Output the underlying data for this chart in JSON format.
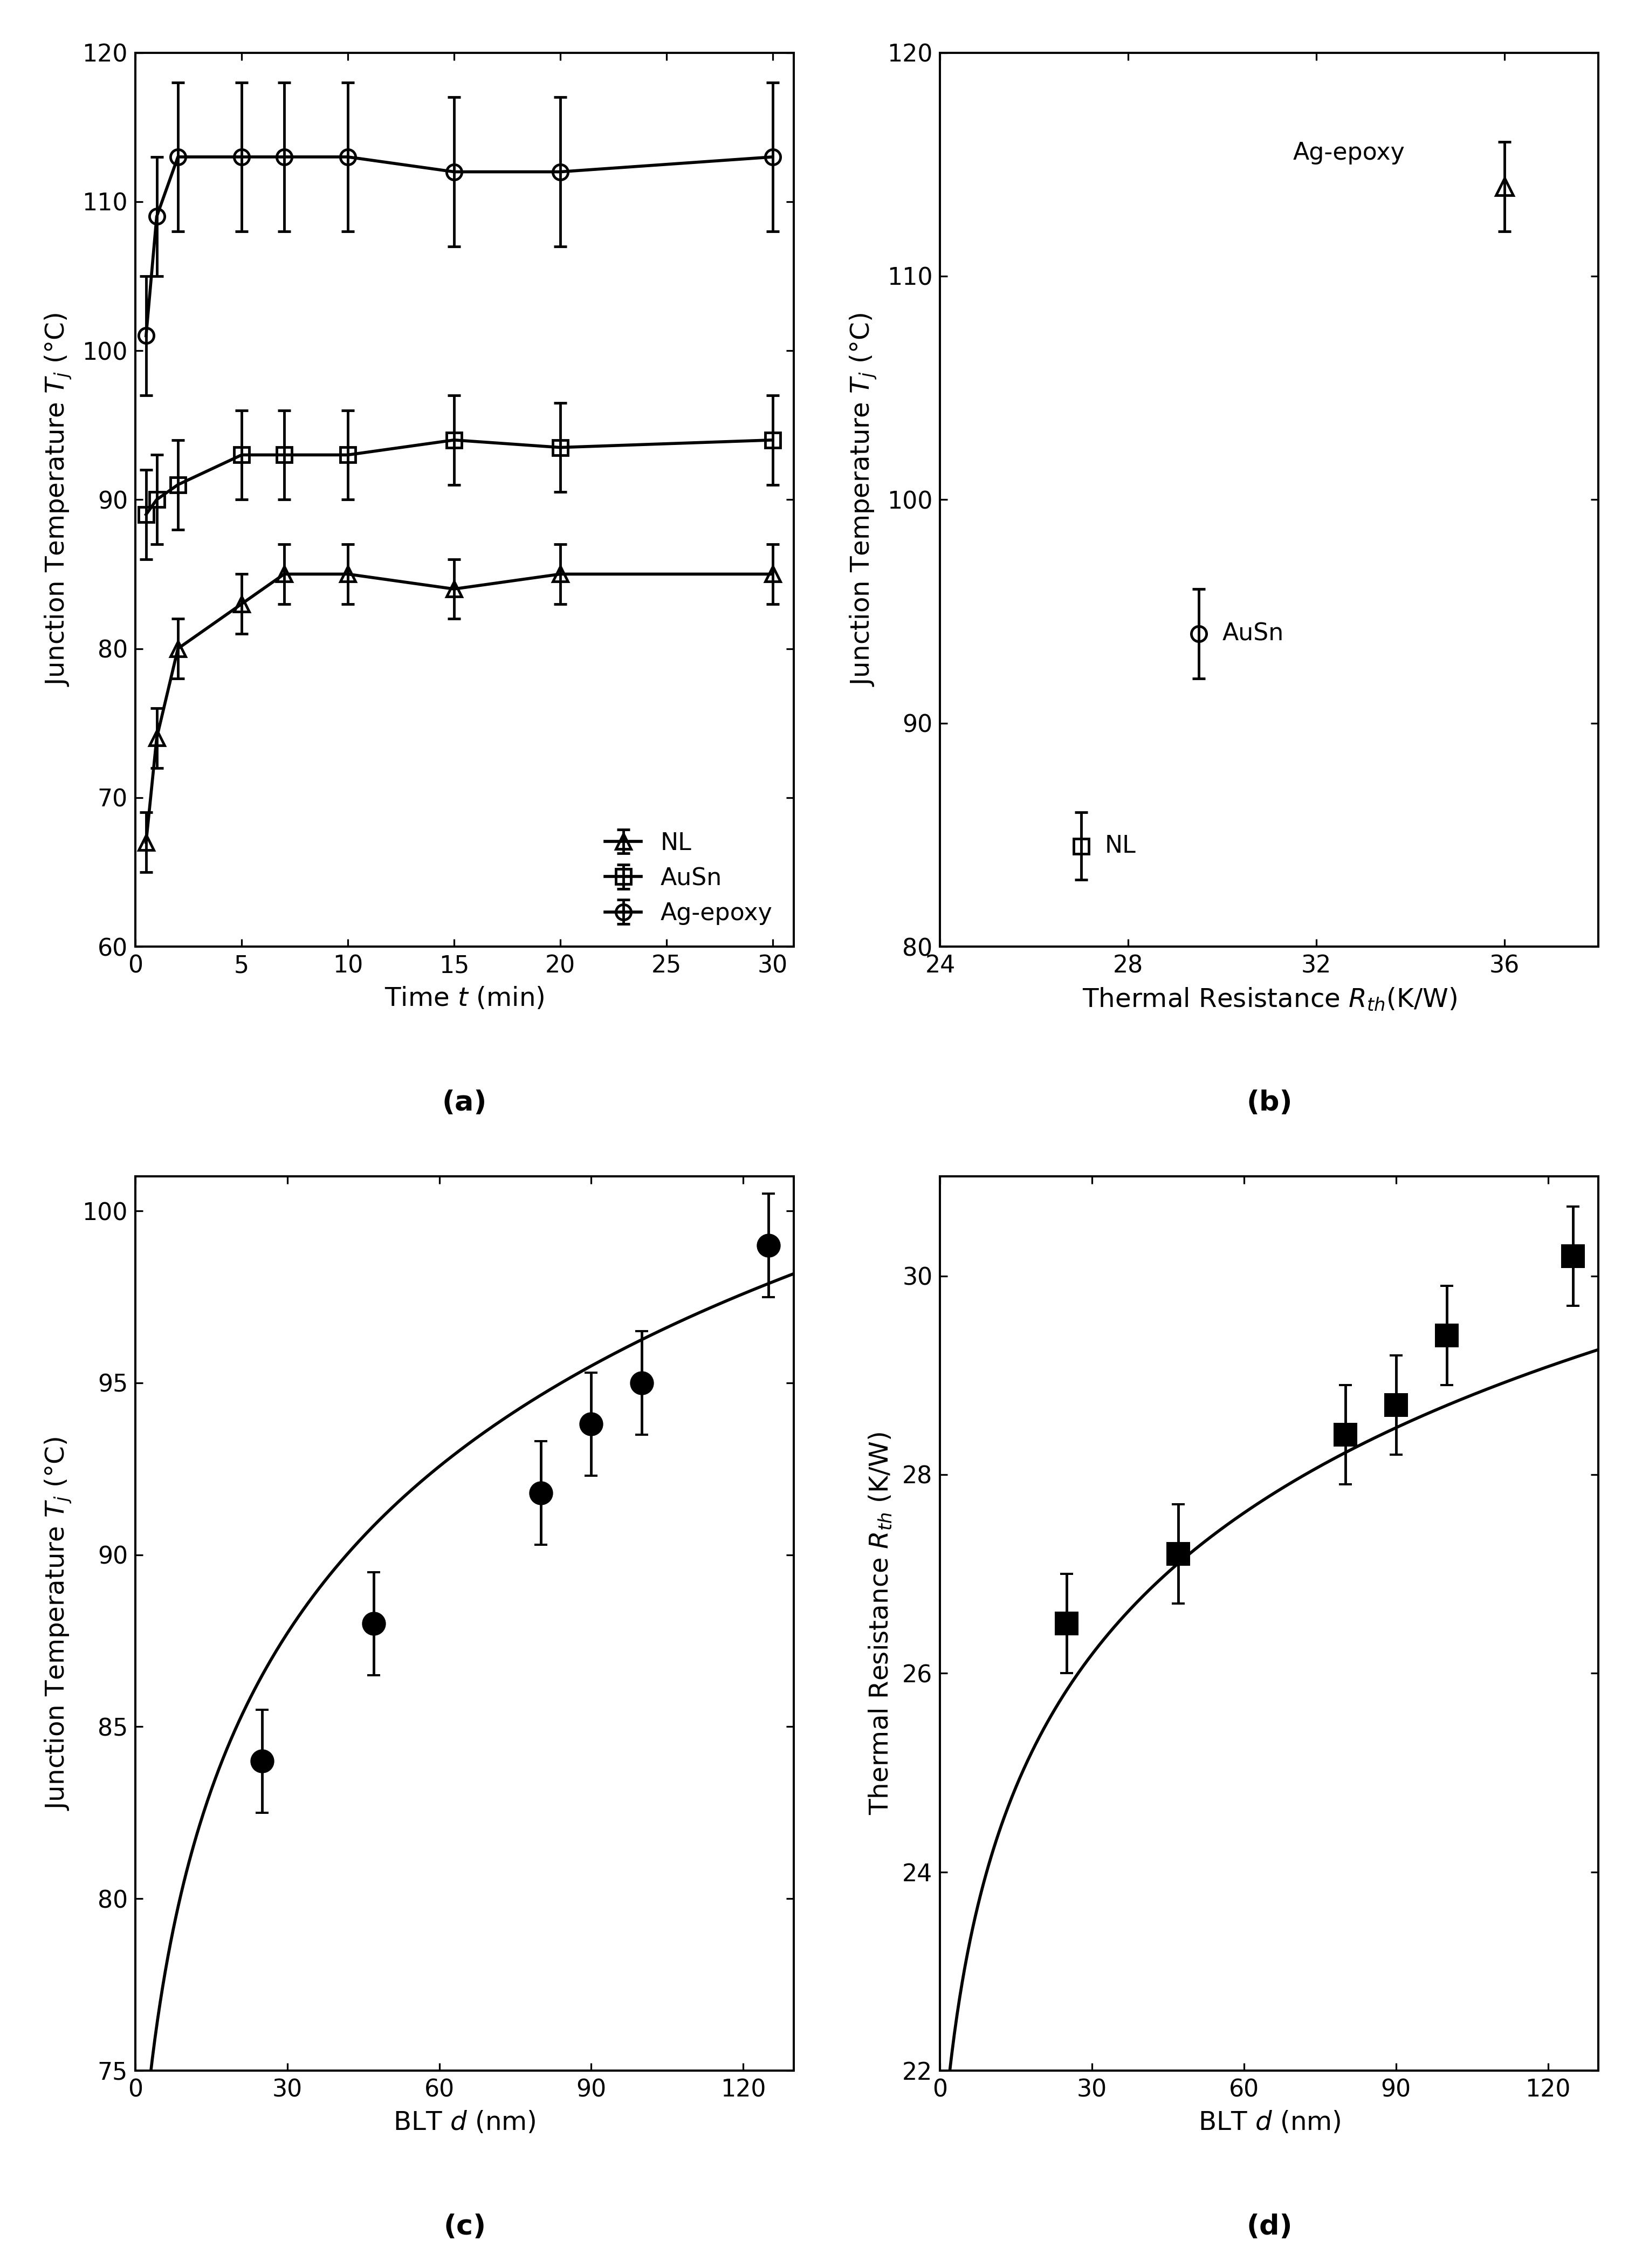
{
  "a": {
    "NL": {
      "t": [
        0.5,
        1,
        2,
        5,
        7,
        10,
        15,
        20,
        30
      ],
      "Tj": [
        67,
        74,
        80,
        83,
        85,
        85,
        84,
        85,
        85
      ],
      "yerr": [
        2,
        2,
        2,
        2,
        2,
        2,
        2,
        2,
        2
      ]
    },
    "AuSn": {
      "t": [
        0.5,
        1,
        2,
        5,
        7,
        10,
        15,
        20,
        30
      ],
      "Tj": [
        89,
        90,
        91,
        93,
        93,
        93,
        94,
        93.5,
        94
      ],
      "yerr": [
        3,
        3,
        3,
        3,
        3,
        3,
        3,
        3,
        3
      ]
    },
    "AgEpoxy": {
      "t": [
        0.5,
        1,
        2,
        5,
        7,
        10,
        15,
        20,
        30
      ],
      "Tj": [
        101,
        109,
        113,
        113,
        113,
        113,
        112,
        112,
        113
      ],
      "yerr": [
        4,
        4,
        5,
        5,
        5,
        5,
        5,
        5,
        5
      ]
    },
    "xlabel": "Time $t$ (min)",
    "ylabel": "Junction Temperature $T_j$ (°C)",
    "xlim": [
      0,
      31
    ],
    "ylim": [
      60,
      120
    ],
    "xticks": [
      0,
      5,
      10,
      15,
      20,
      25,
      30
    ],
    "yticks": [
      60,
      70,
      80,
      90,
      100,
      110,
      120
    ],
    "label": "(a)"
  },
  "b": {
    "NL": {
      "Rth": 27.0,
      "Tj": 84.5,
      "Tj_err": 1.5
    },
    "AuSn": {
      "Rth": 29.5,
      "Tj": 94.0,
      "Tj_err": 2.0
    },
    "AgEpoxy": {
      "Rth": 36.0,
      "Tj": 114.0,
      "Tj_err": 2.0
    },
    "xlabel": "Thermal Resistance $R_{th}$(K/W)",
    "ylabel": "Junction Temperature $T_j$ (°C)",
    "xlim": [
      24,
      38
    ],
    "ylim": [
      80,
      120
    ],
    "xticks": [
      24,
      28,
      32,
      36
    ],
    "yticks": [
      80,
      90,
      100,
      110,
      120
    ],
    "label": "(b)"
  },
  "c": {
    "d": [
      25,
      47,
      80,
      90,
      100,
      125
    ],
    "Tj": [
      84.0,
      88.0,
      91.8,
      93.8,
      95.0,
      99.0
    ],
    "yerr": [
      1.5,
      1.5,
      1.5,
      1.5,
      1.5,
      1.5
    ],
    "fit_A": 61.5,
    "fit_B": 7.5,
    "fit_d0": 3.0,
    "xlabel": "BLT $d$ (nm)",
    "ylabel": "Junction Temperature $T_j$ (°C)",
    "xlim": [
      0,
      130
    ],
    "ylim": [
      75,
      101
    ],
    "xticks": [
      0,
      30,
      60,
      90,
      120
    ],
    "yticks": [
      75,
      80,
      85,
      90,
      95,
      100
    ],
    "label": "(c)"
  },
  "d": {
    "d": [
      25,
      47,
      80,
      90,
      100,
      125
    ],
    "Rth": [
      26.5,
      27.2,
      28.4,
      28.7,
      29.4,
      30.2
    ],
    "yerr": [
      0.5,
      0.5,
      0.5,
      0.5,
      0.5,
      0.5
    ],
    "fit_A": 18.5,
    "fit_B": 2.2,
    "fit_d0": 3.0,
    "xlabel": "BLT $d$ (nm)",
    "ylabel": "Thermal Resistance $R_{th}$ (K/W)",
    "xlim": [
      0,
      130
    ],
    "ylim": [
      22,
      31
    ],
    "xticks": [
      0,
      30,
      60,
      90,
      120
    ],
    "yticks": [
      22,
      24,
      26,
      28,
      30
    ],
    "label": "(d)"
  }
}
